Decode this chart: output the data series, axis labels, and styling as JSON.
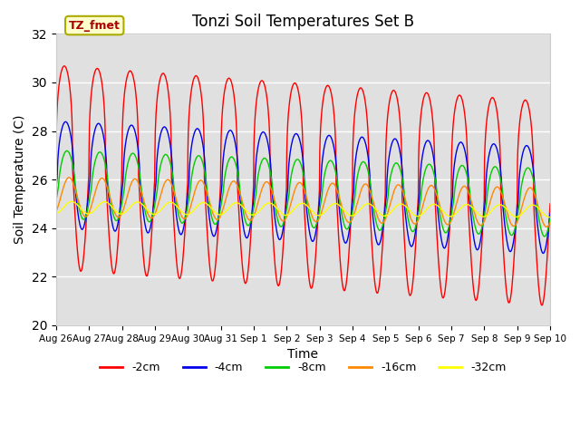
{
  "title": "Tonzi Soil Temperatures Set B",
  "xlabel": "Time",
  "ylabel": "Soil Temperature (C)",
  "ylim": [
    20,
    32
  ],
  "bg_color": "#e0e0e0",
  "fig_bg": "#ffffff",
  "legend_label": "TZ_fmet",
  "legend_bg": "#ffffcc",
  "legend_text_color": "#aa0000",
  "legend_edge_color": "#aaaa00",
  "series": [
    {
      "label": "-2cm",
      "color": "#ff0000",
      "amplitude": 4.2,
      "mean": 26.5,
      "phase": 0.0,
      "trend": -0.1,
      "sharpness": 3
    },
    {
      "label": "-4cm",
      "color": "#0000ee",
      "amplitude": 2.2,
      "mean": 26.2,
      "phase": 0.25,
      "trend": -0.07,
      "sharpness": 2
    },
    {
      "label": "-8cm",
      "color": "#00cc00",
      "amplitude": 1.4,
      "mean": 25.8,
      "phase": 0.5,
      "trend": -0.05,
      "sharpness": 1.5
    },
    {
      "label": "-16cm",
      "color": "#ff8800",
      "amplitude": 0.8,
      "mean": 25.3,
      "phase": 0.9,
      "trend": -0.03,
      "sharpness": 1
    },
    {
      "label": "-32cm",
      "color": "#ffff00",
      "amplitude": 0.25,
      "mean": 24.85,
      "phase": 1.4,
      "trend": -0.01,
      "sharpness": 1
    }
  ],
  "tick_labels": [
    "Aug 26",
    "Aug 27",
    "Aug 28",
    "Aug 29",
    "Aug 30",
    "Aug 31",
    "Sep 1",
    "Sep 2",
    "Sep 3",
    "Sep 4",
    "Sep 5",
    "Sep 6",
    "Sep 7",
    "Sep 8",
    "Sep 9",
    "Sep 10"
  ],
  "tick_positions": [
    0,
    1,
    2,
    3,
    4,
    5,
    6,
    7,
    8,
    9,
    10,
    11,
    12,
    13,
    14,
    15
  ],
  "n_days": 15,
  "pts_per_day": 96
}
